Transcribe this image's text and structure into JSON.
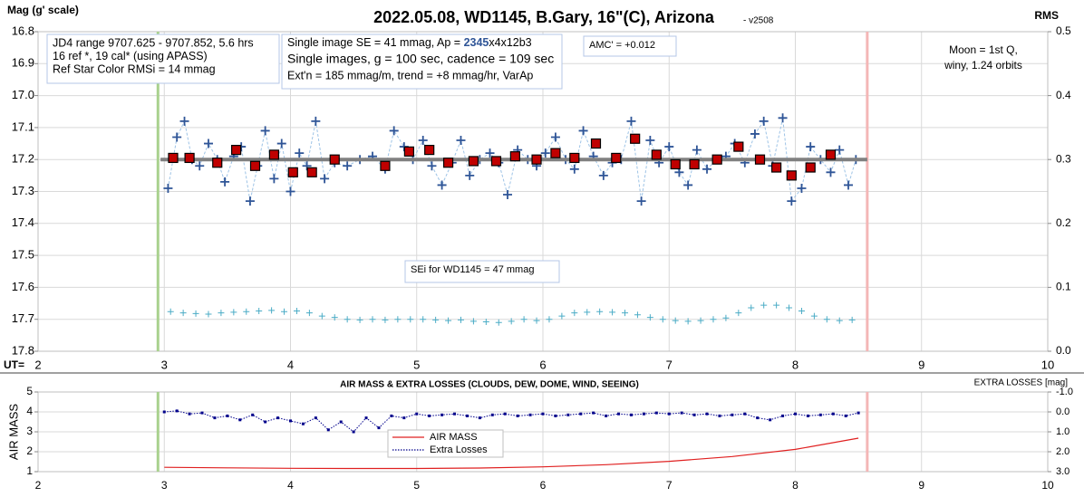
{
  "chart_data": [
    {
      "type": "scatter",
      "title": "2022.05.08, WD1145, B.Gary, 16\"(C), Arizona",
      "subtitle": "- v2508",
      "y_label": "Mag (g' scale)",
      "y2_label": "RMS",
      "x_label": "UT=",
      "xlim": [
        2,
        10
      ],
      "xticks": [
        2,
        3,
        4,
        5,
        6,
        7,
        8,
        9,
        10
      ],
      "ylim": [
        16.8,
        17.8
      ],
      "y_inverted": true,
      "yticks": [
        16.8,
        16.9,
        {
          "value": 17,
          "label": "17.0"
        },
        17.1,
        17.2,
        17.3,
        17.4,
        17.5,
        17.6,
        17.7,
        17.8
      ],
      "y2lim": [
        0,
        0.5
      ],
      "y2ticks": [
        {
          "value": 0,
          "label": "0.0"
        },
        0.1,
        0.2,
        0.3,
        0.4,
        0.5
      ],
      "grid": true,
      "markers": [
        {
          "x": 2.95,
          "color": "#a9d18e"
        },
        {
          "x": 8.57,
          "color": "#f4b6b6"
        }
      ],
      "series": [
        {
          "marker": "plus",
          "color": "#2f5597",
          "line_style": "dashed",
          "line_color": "#9dc3e6",
          "x": [
            3.03,
            3.1,
            3.16,
            3.22,
            3.28,
            3.35,
            3.42,
            3.48,
            3.55,
            3.61,
            3.68,
            3.74,
            3.8,
            3.87,
            3.93,
            4.0,
            4.07,
            4.13,
            4.2,
            4.27,
            4.35,
            4.45,
            4.55,
            4.65,
            4.75,
            4.82,
            4.9,
            4.97,
            5.05,
            5.12,
            5.2,
            5.28,
            5.35,
            5.42,
            5.5,
            5.58,
            5.65,
            5.72,
            5.8,
            5.88,
            5.95,
            6.02,
            6.1,
            6.18,
            6.25,
            6.32,
            6.4,
            6.48,
            6.55,
            6.62,
            6.7,
            6.78,
            6.85,
            6.92,
            7.0,
            7.08,
            7.15,
            7.22,
            7.3,
            7.38,
            7.45,
            7.52,
            7.6,
            7.68,
            7.75,
            7.82,
            7.9,
            7.97,
            8.05,
            8.12,
            8.2,
            8.28,
            8.35,
            8.42,
            8.48
          ],
          "values": [
            17.29,
            17.13,
            17.08,
            17.2,
            17.22,
            17.15,
            17.2,
            17.27,
            17.19,
            17.16,
            17.33,
            17.22,
            17.11,
            17.26,
            17.15,
            17.3,
            17.18,
            17.22,
            17.08,
            17.26,
            17.21,
            17.22,
            17.2,
            17.19,
            17.23,
            17.11,
            17.16,
            17.2,
            17.14,
            17.22,
            17.28,
            17.21,
            17.14,
            17.25,
            17.2,
            17.18,
            17.21,
            17.31,
            17.17,
            17.2,
            17.22,
            17.18,
            17.13,
            17.2,
            17.23,
            17.11,
            17.19,
            17.25,
            17.21,
            17.2,
            17.08,
            17.33,
            17.14,
            17.21,
            17.16,
            17.24,
            17.28,
            17.17,
            17.23,
            17.2,
            17.19,
            17.15,
            17.21,
            17.12,
            17.08,
            17.22,
            17.07,
            17.33,
            17.29,
            17.16,
            17.2,
            17.24,
            17.17,
            17.28,
            17.2
          ]
        },
        {
          "marker": "line",
          "color": "#808080",
          "x": [
            2.97,
            8.57
          ],
          "values": [
            17.2,
            17.2
          ]
        },
        {
          "marker": "square",
          "color": "#c00000",
          "x": [
            3.07,
            3.2,
            3.42,
            3.57,
            3.72,
            3.87,
            4.02,
            4.17,
            4.35,
            4.75,
            4.94,
            5.1,
            5.25,
            5.45,
            5.63,
            5.78,
            5.95,
            6.1,
            6.25,
            6.42,
            6.58,
            6.73,
            6.9,
            7.05,
            7.2,
            7.38,
            7.55,
            7.72,
            7.85,
            7.97,
            8.12,
            8.28
          ],
          "values": [
            17.195,
            17.195,
            17.21,
            17.17,
            17.22,
            17.185,
            17.24,
            17.24,
            17.2,
            17.22,
            17.175,
            17.17,
            17.21,
            17.205,
            17.205,
            17.19,
            17.2,
            17.18,
            17.195,
            17.15,
            17.195,
            17.135,
            17.185,
            17.215,
            17.215,
            17.2,
            17.16,
            17.2,
            17.225,
            17.25,
            17.225,
            17.185
          ]
        },
        {
          "marker": "plus-small",
          "color": "#4bacc6",
          "axis": "y2",
          "x": [
            3.05,
            3.15,
            3.25,
            3.35,
            3.45,
            3.55,
            3.65,
            3.75,
            3.85,
            3.95,
            4.05,
            4.15,
            4.25,
            4.35,
            4.45,
            4.55,
            4.65,
            4.75,
            4.85,
            4.95,
            5.05,
            5.15,
            5.25,
            5.35,
            5.45,
            5.55,
            5.65,
            5.75,
            5.85,
            5.95,
            6.05,
            6.15,
            6.25,
            6.35,
            6.45,
            6.55,
            6.65,
            6.75,
            6.85,
            6.95,
            7.05,
            7.15,
            7.25,
            7.35,
            7.45,
            7.55,
            7.65,
            7.75,
            7.85,
            7.95,
            8.05,
            8.15,
            8.25,
            8.35,
            8.45
          ],
          "values": [
            0.062,
            0.06,
            0.059,
            0.058,
            0.06,
            0.061,
            0.062,
            0.063,
            0.064,
            0.062,
            0.063,
            0.06,
            0.055,
            0.053,
            0.05,
            0.049,
            0.05,
            0.049,
            0.05,
            0.05,
            0.05,
            0.049,
            0.048,
            0.049,
            0.047,
            0.046,
            0.045,
            0.047,
            0.05,
            0.048,
            0.05,
            0.055,
            0.06,
            0.061,
            0.062,
            0.061,
            0.06,
            0.057,
            0.053,
            0.05,
            0.048,
            0.047,
            0.048,
            0.05,
            0.052,
            0.06,
            0.068,
            0.072,
            0.072,
            0.068,
            0.063,
            0.055,
            0.05,
            0.048,
            0.049
          ]
        }
      ],
      "annotations": [
        {
          "lines": [
            "JD4 range 9707.625 - 9707.852, 5.6 hrs",
            "16 ref *, 19 cal* (using APASS)",
            "Ref Star Color RMSi = 14 mmag"
          ]
        },
        {
          "lines": [
            [
              {
                "text": "Single image SE = 41 mmag, Ap = "
              },
              {
                "text": "2345",
                "color": "#2f5597",
                "bold": true
              },
              {
                "text": "x4x12b3"
              }
            ],
            "Single images, g = 100 sec, cadence = 109 sec",
            "Ext'n = 185 mmag/m, trend = +8 mmag/hr, VarAp"
          ]
        },
        {
          "lines": [
            "AMC' = +0.012"
          ]
        },
        {
          "lines": [
            "Moon = 1st Q,",
            "winy,  1.24 orbits"
          ]
        },
        {
          "lines": [
            "SEi for WD1145 = 47 mmag"
          ]
        }
      ]
    },
    {
      "type": "line",
      "title": "AIR MASS & EXTRA LOSSES (CLOUDS, DEW, DOME, WIND, SEEING)",
      "y_label": "AIR MASS",
      "y2_label": "EXTRA LOSSES [mag]",
      "xlim": [
        2,
        10
      ],
      "xticks": [
        2,
        3,
        4,
        5,
        6,
        7,
        8,
        9,
        10
      ],
      "ylim": [
        1,
        5
      ],
      "yticks": [
        1,
        2,
        3,
        4,
        5
      ],
      "y2lim": [
        -1,
        3
      ],
      "y2_inverted": true,
      "y2ticks": [
        {
          "value": -1,
          "label": "-1.0"
        },
        {
          "value": 0,
          "label": "0.0"
        },
        {
          "value": 1,
          "label": "1.0"
        },
        {
          "value": 2,
          "label": "2.0"
        },
        {
          "value": 3,
          "label": "3.0"
        }
      ],
      "grid": true,
      "markers": [
        {
          "x": 2.95,
          "color": "#a9d18e"
        },
        {
          "x": 8.57,
          "color": "#f4b6b6"
        }
      ],
      "series": [
        {
          "name": "AIR MASS",
          "marker": "line",
          "color": "#e02020",
          "x": [
            3.0,
            3.5,
            4.0,
            4.5,
            5.0,
            5.5,
            6.0,
            6.5,
            7.0,
            7.5,
            8.0,
            8.5
          ],
          "values": [
            1.22,
            1.19,
            1.17,
            1.16,
            1.16,
            1.18,
            1.24,
            1.35,
            1.52,
            1.76,
            2.12,
            2.68
          ]
        },
        {
          "name": "Extra Losses",
          "marker": "square-small",
          "color": "#00008b",
          "line_style": "dotted",
          "line_color": "#00008b",
          "axis": "y2",
          "x": [
            3.0,
            3.1,
            3.2,
            3.3,
            3.4,
            3.5,
            3.6,
            3.7,
            3.8,
            3.9,
            4.0,
            4.1,
            4.2,
            4.3,
            4.4,
            4.5,
            4.6,
            4.7,
            4.8,
            4.9,
            5.0,
            5.1,
            5.2,
            5.3,
            5.4,
            5.5,
            5.6,
            5.7,
            5.8,
            5.9,
            6.0,
            6.1,
            6.2,
            6.3,
            6.4,
            6.5,
            6.6,
            6.7,
            6.8,
            6.9,
            7.0,
            7.1,
            7.2,
            7.3,
            7.4,
            7.5,
            7.6,
            7.7,
            7.8,
            7.9,
            8.0,
            8.1,
            8.2,
            8.3,
            8.4,
            8.5
          ],
          "values": [
            0.0,
            -0.05,
            0.1,
            0.05,
            0.3,
            0.2,
            0.4,
            0.15,
            0.5,
            0.3,
            0.45,
            0.6,
            0.3,
            0.9,
            0.5,
            1.0,
            0.3,
            0.8,
            0.2,
            0.3,
            0.1,
            0.2,
            0.15,
            0.1,
            0.2,
            0.3,
            0.15,
            0.1,
            0.2,
            0.15,
            0.1,
            0.2,
            0.15,
            0.1,
            0.05,
            0.2,
            0.1,
            0.15,
            0.1,
            0.05,
            0.1,
            0.05,
            0.15,
            0.1,
            0.2,
            0.15,
            0.1,
            0.3,
            0.4,
            0.2,
            0.1,
            0.2,
            0.15,
            0.1,
            0.2,
            0.05
          ]
        }
      ]
    }
  ]
}
